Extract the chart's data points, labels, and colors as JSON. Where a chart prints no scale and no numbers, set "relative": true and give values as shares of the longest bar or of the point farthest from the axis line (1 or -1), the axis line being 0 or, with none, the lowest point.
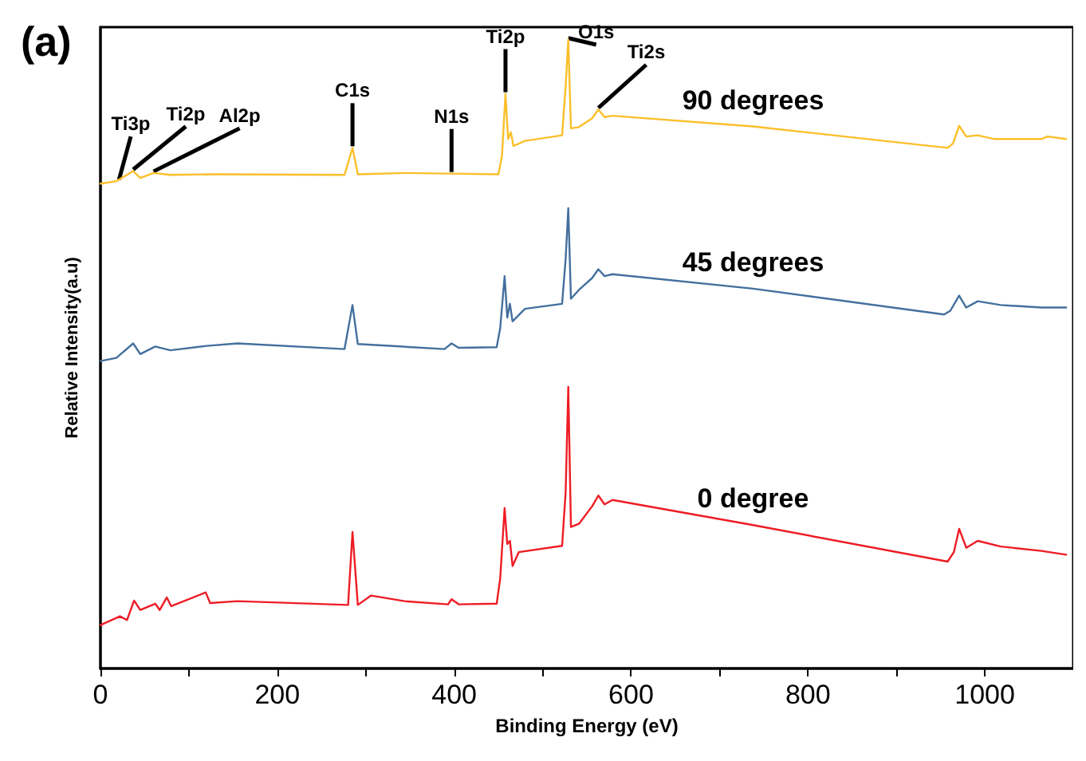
{
  "chart_data": {
    "type": "line",
    "title": "(a)",
    "xlabel": "Binding Energy (eV)",
    "ylabel": "Relative Intensity(a.u)",
    "relative": true,
    "xlim": [
      0,
      1100
    ],
    "xticks": [
      0,
      {
        "value": 100,
        "label": null
      },
      200,
      {
        "value": 300,
        "label": null
      },
      400,
      {
        "value": 500,
        "label": null
      },
      600,
      {
        "value": 700,
        "label": null
      },
      800,
      {
        "value": 900,
        "label": null
      },
      1000
    ],
    "grid": false,
    "legend": false,
    "marker": "none",
    "line_style": "solid",
    "annotations": [
      {
        "text": "Ti3p",
        "x": 21,
        "y": 0.775
      },
      {
        "text": "Ti2p",
        "x": 37,
        "y": 0.791
      },
      {
        "text": "Al2p",
        "x": 60,
        "y": 0.788
      },
      {
        "text": "C1s",
        "x": 285,
        "y": 0.828
      },
      {
        "text": "N1s",
        "x": 397,
        "y": 0.787
      },
      {
        "text": "Ti2p",
        "x": 458,
        "y": 0.914
      },
      {
        "text": "O1s",
        "x": 529,
        "y": 1
      },
      {
        "text": "Ti2s",
        "x": 563,
        "y": 0.889
      }
    ],
    "series": [
      {
        "name": "90 degrees",
        "color": "#fbbf2a",
        "x": [
          0,
          18,
          37,
          45,
          60,
          79,
          132,
          276,
          285,
          291,
          344,
          395,
          450,
          454,
          458,
          461,
          464,
          467,
          480,
          522,
          526,
          529,
          532,
          541,
          556,
          563,
          570,
          579,
          738,
          958,
          964,
          971,
          979,
          992,
          1011,
          1064,
          1071,
          1092
        ],
        "values": [
          0.771,
          0.775,
          0.791,
          0.78,
          0.788,
          0.785,
          0.786,
          0.785,
          0.828,
          0.786,
          0.788,
          0.787,
          0.786,
          0.815,
          0.914,
          0.842,
          0.853,
          0.831,
          0.839,
          0.848,
          0.925,
          1,
          0.859,
          0.861,
          0.875,
          0.889,
          0.877,
          0.879,
          0.862,
          0.828,
          0.835,
          0.863,
          0.846,
          0.848,
          0.842,
          0.842,
          0.846,
          0.842
        ]
      },
      {
        "name": "45 degrees",
        "color": "#44709d",
        "x": [
          0,
          18,
          37,
          45,
          62,
          79,
          120,
          155,
          276,
          285,
          291,
          389,
          397,
          405,
          448,
          452,
          457,
          460,
          463,
          466,
          480,
          522,
          526,
          529,
          532,
          541,
          556,
          563,
          570,
          579,
          738,
          954,
          961,
          971,
          979,
          992,
          1018,
          1064,
          1092
        ],
        "values": [
          0.489,
          0.494,
          0.517,
          0.5,
          0.512,
          0.506,
          0.513,
          0.517,
          0.508,
          0.578,
          0.516,
          0.508,
          0.517,
          0.51,
          0.511,
          0.541,
          0.624,
          0.558,
          0.58,
          0.552,
          0.572,
          0.58,
          0.651,
          0.732,
          0.588,
          0.602,
          0.621,
          0.635,
          0.624,
          0.627,
          0.604,
          0.563,
          0.569,
          0.593,
          0.574,
          0.584,
          0.578,
          0.574,
          0.574
        ]
      },
      {
        "name": "0 degree",
        "color": "#ee1c25",
        "x": [
          0,
          22,
          30,
          38,
          45,
          62,
          67,
          75,
          80,
          119,
          124,
          155,
          280,
          285,
          291,
          306,
          344,
          393,
          397,
          405,
          448,
          452,
          457,
          460,
          463,
          466,
          473,
          522,
          526,
          529,
          532,
          541,
          556,
          563,
          570,
          579,
          738,
          958,
          965,
          971,
          979,
          992,
          1018,
          1064,
          1092
        ],
        "values": [
          0.069,
          0.083,
          0.077,
          0.108,
          0.093,
          0.103,
          0.093,
          0.113,
          0.099,
          0.121,
          0.104,
          0.107,
          0.101,
          0.217,
          0.101,
          0.116,
          0.107,
          0.102,
          0.11,
          0.102,
          0.103,
          0.143,
          0.255,
          0.198,
          0.203,
          0.163,
          0.185,
          0.195,
          0.28,
          0.448,
          0.225,
          0.23,
          0.258,
          0.275,
          0.261,
          0.268,
          0.228,
          0.17,
          0.185,
          0.222,
          0.192,
          0.203,
          0.194,
          0.187,
          0.181
        ]
      }
    ]
  }
}
